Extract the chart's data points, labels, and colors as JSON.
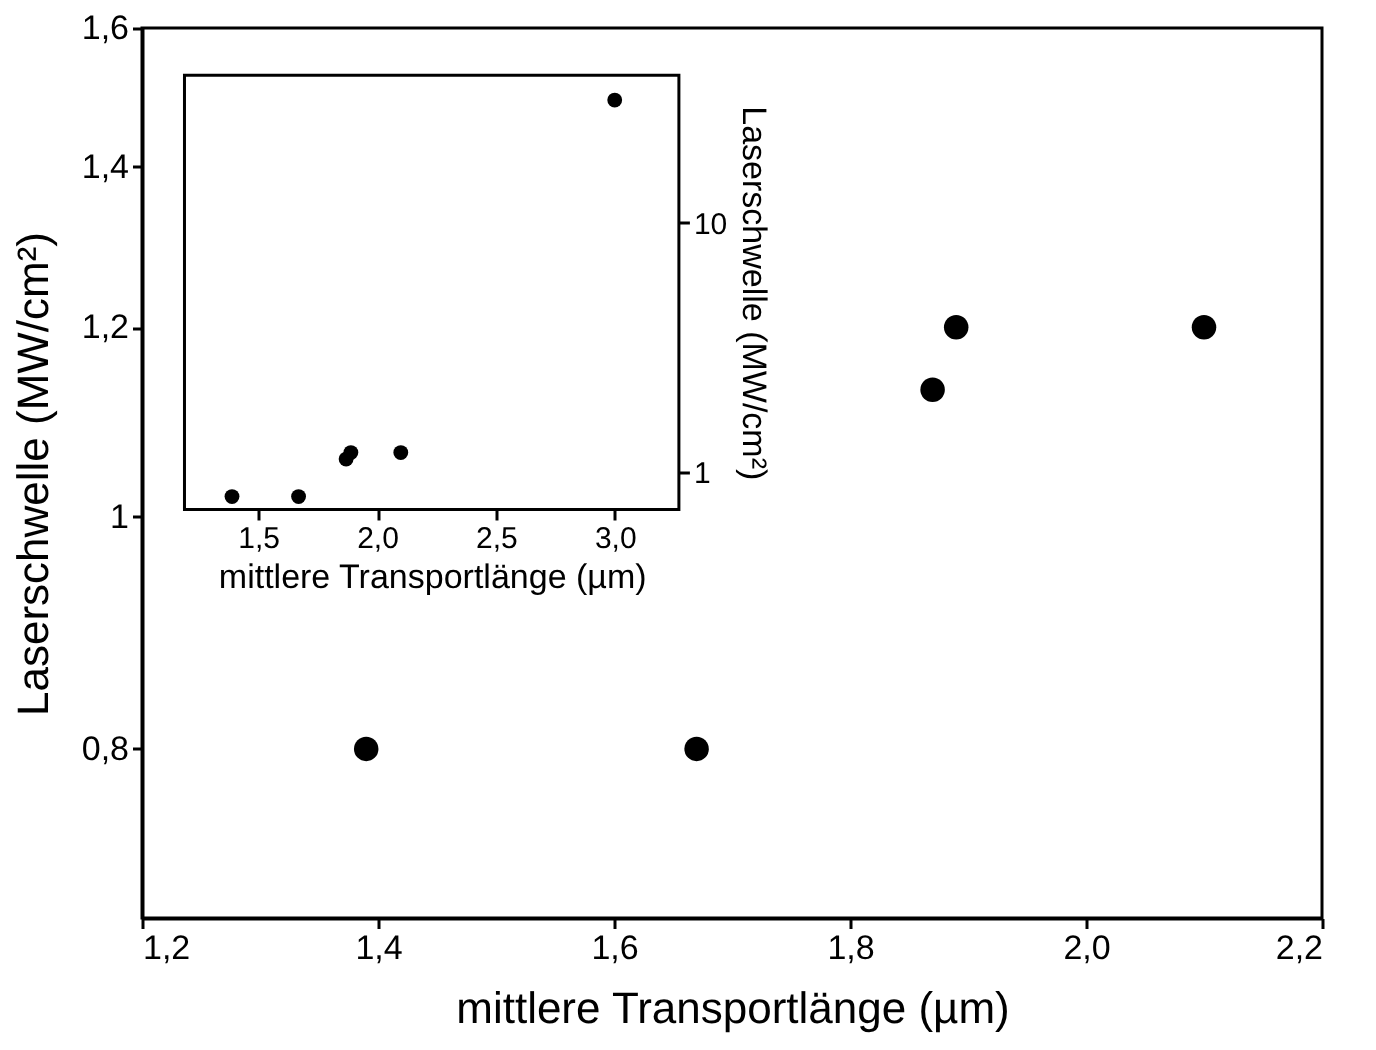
{
  "chart_data": [
    {
      "type": "scatter",
      "xlabel": "mittlere Transportlänge (µm)",
      "ylabel": "Laserschwelle (MW/cm²)",
      "marker": "circle",
      "log": true,
      "grid": false,
      "x": [
        1.39,
        1.67,
        1.87,
        1.89,
        2.1
      ],
      "series": [
        {
          "color": "#000000",
          "values": [
            0.8,
            0.8,
            1.13,
            1.2,
            1.2
          ]
        }
      ],
      "xlim": [
        1.2,
        2.2
      ],
      "xticks": [
        {
          "value": 1.2,
          "label": "1,2"
        },
        {
          "value": 1.4,
          "label": "1,4"
        },
        {
          "value": 1.6,
          "label": "1,6"
        },
        {
          "value": 1.8,
          "label": "1,8"
        },
        {
          "value": 2.0,
          "label": "2,0"
        },
        {
          "value": 2.2,
          "label": "2,2"
        }
      ],
      "ylim": [
        0.68,
        1.6
      ],
      "yticks": [
        {
          "value": 0.8,
          "label": "0,8"
        },
        1,
        {
          "value": 1.2,
          "label": "1,2"
        },
        {
          "value": 1.4,
          "label": "1,4"
        },
        {
          "value": 1.6,
          "label": "1,6"
        }
      ]
    },
    {
      "type": "scatter",
      "xlabel": "mittlere Transportlänge (µm)",
      "ylabel": "Laserschwelle (MW/cm²)",
      "marker": "circle",
      "log": true,
      "grid": false,
      "x": [
        1.39,
        1.67,
        1.87,
        1.89,
        2.1,
        3.0
      ],
      "series": [
        {
          "color": "#000000",
          "values": [
            0.8,
            0.8,
            1.13,
            1.2,
            1.2,
            31
          ]
        }
      ],
      "xlim": [
        1.19,
        3.27
      ],
      "xticks": [
        {
          "value": 1.5,
          "label": "1,5"
        },
        {
          "value": 2.0,
          "label": "2,0"
        },
        {
          "value": 2.5,
          "label": "2,5"
        },
        {
          "value": 3.0,
          "label": "3,0"
        }
      ],
      "ylim": [
        0.71,
        39
      ],
      "yticks": [
        1,
        10
      ]
    }
  ]
}
